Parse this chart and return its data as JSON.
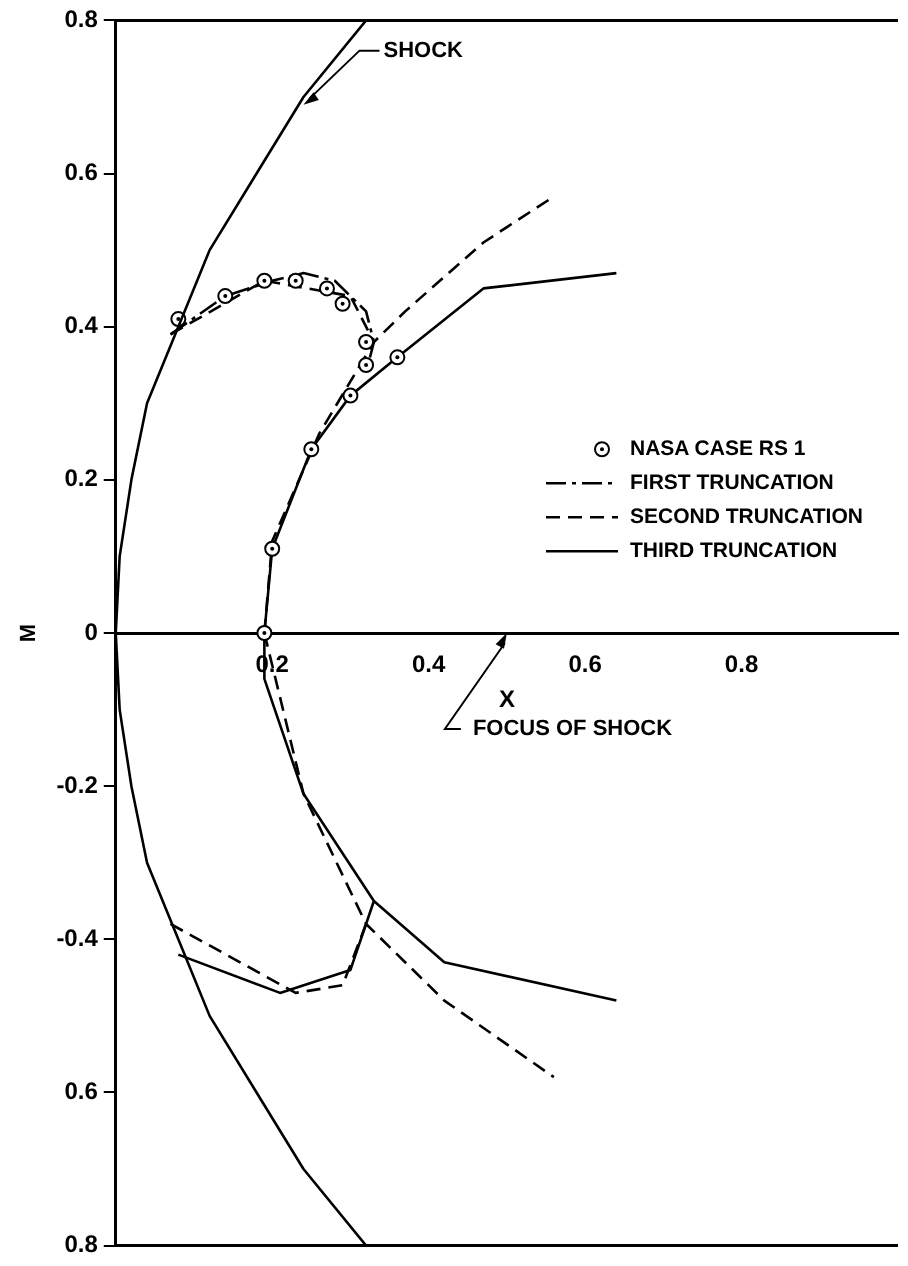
{
  "chart_data": {
    "type": "line",
    "xlabel": "X",
    "ylabel": "M",
    "xlim": [
      0,
      1.0
    ],
    "ylim": [
      -0.8,
      0.8
    ],
    "xticks": [
      0.2,
      0.4,
      0.6,
      0.8
    ],
    "yticks": [
      0.8,
      0.6,
      0.4,
      0.2,
      0,
      -0.2,
      -0.4,
      {
        "value": -0.6,
        "label": "0.6"
      },
      {
        "value": -0.8,
        "label": "0.8"
      }
    ],
    "grid": false,
    "legend": "right",
    "marker": "none",
    "series": [
      {
        "color": "#000000",
        "line_style": "solid",
        "x": [
          0.32,
          0.24,
          0.18,
          0.12,
          0.08,
          0.04,
          0.02,
          0.005,
          0,
          0.005,
          0.02,
          0.04,
          0.08,
          0.12,
          0.18,
          0.24,
          0.32
        ],
        "values": [
          -0.8,
          -0.7,
          -0.6,
          -0.5,
          -0.4,
          -0.3,
          -0.2,
          -0.1,
          0,
          0.1,
          0.2,
          0.3,
          0.4,
          0.5,
          0.6,
          0.7,
          0.8
        ]
      },
      {
        "type": "scatter",
        "name": "NASA CASE RS 1",
        "color": "#000000",
        "marker": "circle",
        "x": [
          0.08,
          0.14,
          0.19,
          0.23,
          0.27,
          0.29,
          0.32,
          0.32,
          0.36,
          0.3,
          0.25,
          0.2,
          0.19
        ],
        "values": [
          0.41,
          0.44,
          0.46,
          0.46,
          0.45,
          0.43,
          0.38,
          0.35,
          0.36,
          0.31,
          0.24,
          0.11,
          0
        ]
      },
      {
        "name": "FIRST TRUNCATION",
        "color": "#000000",
        "line_style": "dashdot",
        "x": [
          0.07,
          0.14,
          0.2,
          0.24,
          0.28,
          0.32,
          0.33,
          0.32
        ],
        "values": [
          0.39,
          0.44,
          0.46,
          0.47,
          0.46,
          0.42,
          0.38,
          0.34
        ]
      },
      {
        "name": "SECOND TRUNCATION",
        "color": "#000000",
        "line_style": "dashed",
        "x": [
          0.07,
          0.19,
          0.3,
          0.33,
          null,
          0.19,
          0.2,
          0.26,
          0.33,
          0.37,
          0.47,
          0.56,
          null,
          0.19,
          0.24,
          0.32,
          0.42,
          0.56,
          null,
          0.07,
          0.23,
          0.29,
          0.32
        ],
        "values": [
          0.39,
          0.46,
          0.44,
          0.38,
          null,
          0,
          0.12,
          0.26,
          0.38,
          0.42,
          0.51,
          0.57,
          null,
          0,
          -0.21,
          -0.38,
          -0.48,
          -0.58,
          null,
          -0.38,
          -0.47,
          -0.46,
          -0.38
        ]
      },
      {
        "name": "THIRD TRUNCATION",
        "color": "#000000",
        "line_style": "solid",
        "x": [
          0.19,
          0.2,
          0.25,
          0.3,
          0.36,
          0.47,
          0.64,
          null,
          0.19,
          0.19,
          0.24,
          0.33,
          0.42,
          0.64,
          null,
          0.08,
          0.21,
          0.3,
          0.33
        ],
        "values": [
          0,
          0.11,
          0.24,
          0.31,
          0.36,
          0.45,
          0.47,
          null,
          0,
          -0.06,
          -0.21,
          -0.35,
          -0.43,
          -0.48,
          null,
          -0.42,
          -0.47,
          -0.44,
          -0.35
        ]
      }
    ],
    "annotations": [
      {
        "text": "SHOCK",
        "x": 0.24,
        "y": 0.69
      },
      "FOCUS OF SHOCK"
    ]
  }
}
